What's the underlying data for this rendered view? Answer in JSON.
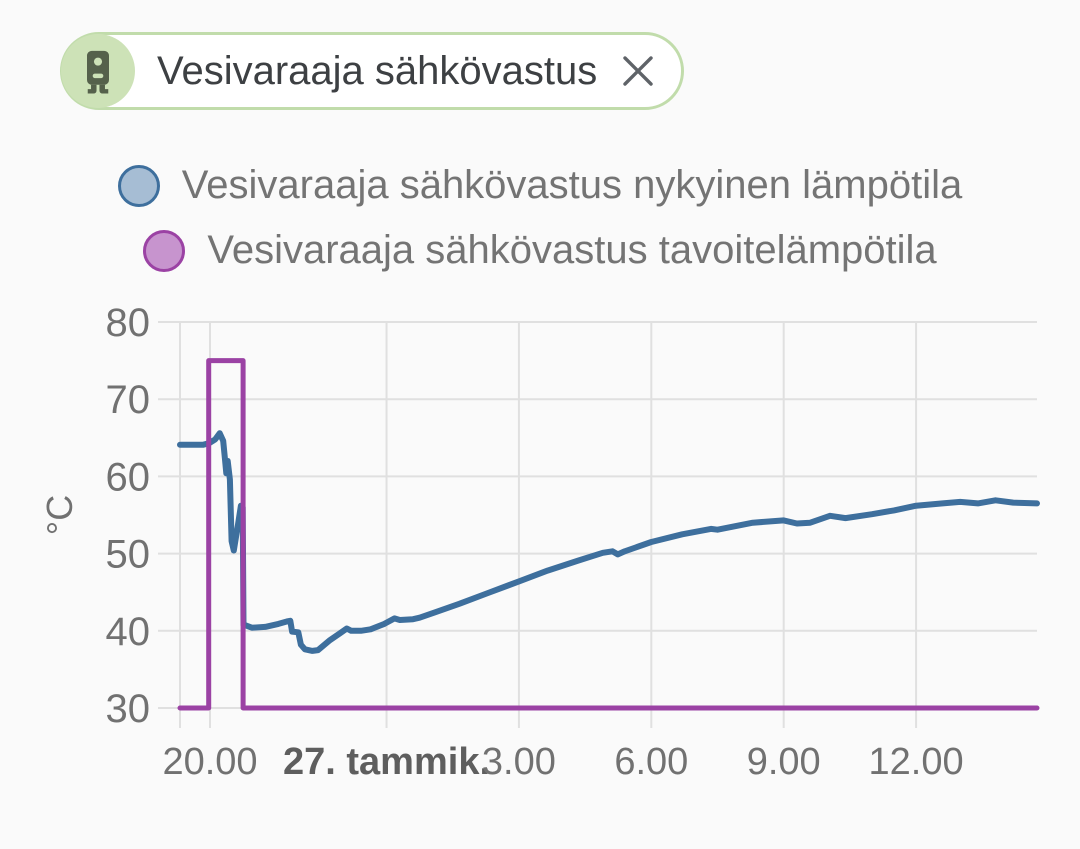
{
  "chip": {
    "label": "Vesivaraaja sähkövastus"
  },
  "legend": [
    {
      "label": "Vesivaraaja sähkövastus nykyinen lämpötila",
      "fill": "#a6bdd4",
      "stroke": "#3e6f9d"
    },
    {
      "label": "Vesivaraaja sähkövastus tavoitelämpötila",
      "fill": "#c794ce",
      "stroke": "#9b42a4"
    }
  ],
  "chart_data": {
    "type": "line",
    "ylabel": "°C",
    "ylim": [
      30,
      80
    ],
    "y_ticks": [
      80,
      70,
      60,
      50,
      40,
      30
    ],
    "xlim_hours": [
      -4.68,
      14.74
    ],
    "x_unit": "hours relative to midnight 27 January",
    "x_ticks": [
      {
        "t": -4,
        "label": "20.00",
        "bold": false
      },
      {
        "t": 0,
        "label": "27. tammik.",
        "bold": true
      },
      {
        "t": 3,
        "label": "3.00",
        "bold": false
      },
      {
        "t": 6,
        "label": "6.00",
        "bold": false
      },
      {
        "t": 9,
        "label": "9.00",
        "bold": false
      },
      {
        "t": 12,
        "label": "12.00",
        "bold": false
      }
    ],
    "grid": true,
    "grid_color": "#e0e0e0",
    "axis_text_color": "#717171",
    "date_label_color": "#5e5e5e",
    "legend_position": "top-center",
    "series": [
      {
        "name": "Vesivaraaja sähkövastus nykyinen lämpötila",
        "color": "#3e6f9d",
        "width": 6,
        "points": [
          [
            -4.68,
            64.1
          ],
          [
            -4.15,
            64.1
          ],
          [
            -4.02,
            64.3
          ],
          [
            -3.88,
            64.8
          ],
          [
            -3.78,
            65.6
          ],
          [
            -3.7,
            64.6
          ],
          [
            -3.66,
            62.2
          ],
          [
            -3.63,
            60.4
          ],
          [
            -3.6,
            62.0
          ],
          [
            -3.55,
            59.6
          ],
          [
            -3.51,
            51.6
          ],
          [
            -3.46,
            50.4
          ],
          [
            -3.37,
            53.6
          ],
          [
            -3.3,
            56.2
          ],
          [
            -3.26,
            56.0
          ],
          [
            -3.24,
            40.8
          ],
          [
            -3.05,
            40.4
          ],
          [
            -2.75,
            40.5
          ],
          [
            -2.45,
            40.9
          ],
          [
            -2.26,
            41.2
          ],
          [
            -2.18,
            41.3
          ],
          [
            -2.14,
            39.9
          ],
          [
            -2.0,
            39.8
          ],
          [
            -1.94,
            38.2
          ],
          [
            -1.85,
            37.6
          ],
          [
            -1.68,
            37.4
          ],
          [
            -1.55,
            37.5
          ],
          [
            -1.28,
            38.8
          ],
          [
            -1.05,
            39.7
          ],
          [
            -0.9,
            40.3
          ],
          [
            -0.8,
            40.0
          ],
          [
            -0.58,
            40.0
          ],
          [
            -0.36,
            40.2
          ],
          [
            -0.05,
            40.9
          ],
          [
            0.18,
            41.6
          ],
          [
            0.3,
            41.4
          ],
          [
            0.6,
            41.5
          ],
          [
            0.75,
            41.7
          ],
          [
            1.1,
            42.4
          ],
          [
            1.65,
            43.5
          ],
          [
            2.3,
            44.9
          ],
          [
            3.0,
            46.4
          ],
          [
            3.65,
            47.8
          ],
          [
            4.35,
            49.1
          ],
          [
            4.9,
            50.1
          ],
          [
            5.12,
            50.3
          ],
          [
            5.24,
            49.9
          ],
          [
            5.4,
            50.3
          ],
          [
            6.0,
            51.5
          ],
          [
            6.7,
            52.5
          ],
          [
            7.35,
            53.2
          ],
          [
            7.5,
            53.1
          ],
          [
            8.3,
            54.0
          ],
          [
            9.0,
            54.3
          ],
          [
            9.3,
            53.9
          ],
          [
            9.6,
            54.0
          ],
          [
            10.05,
            54.9
          ],
          [
            10.4,
            54.6
          ],
          [
            11.0,
            55.1
          ],
          [
            11.5,
            55.6
          ],
          [
            12.0,
            56.2
          ],
          [
            12.6,
            56.5
          ],
          [
            13.0,
            56.7
          ],
          [
            13.4,
            56.5
          ],
          [
            13.8,
            56.9
          ],
          [
            14.2,
            56.6
          ],
          [
            14.74,
            56.5
          ]
        ]
      },
      {
        "name": "Vesivaraaja sähkövastus tavoitelämpötila",
        "color": "#9b42a4",
        "width": 5,
        "points": [
          [
            -4.68,
            30
          ],
          [
            -4.03,
            30
          ],
          [
            -4.03,
            75
          ],
          [
            -3.25,
            75
          ],
          [
            -3.25,
            30
          ],
          [
            14.74,
            30
          ]
        ]
      }
    ]
  }
}
